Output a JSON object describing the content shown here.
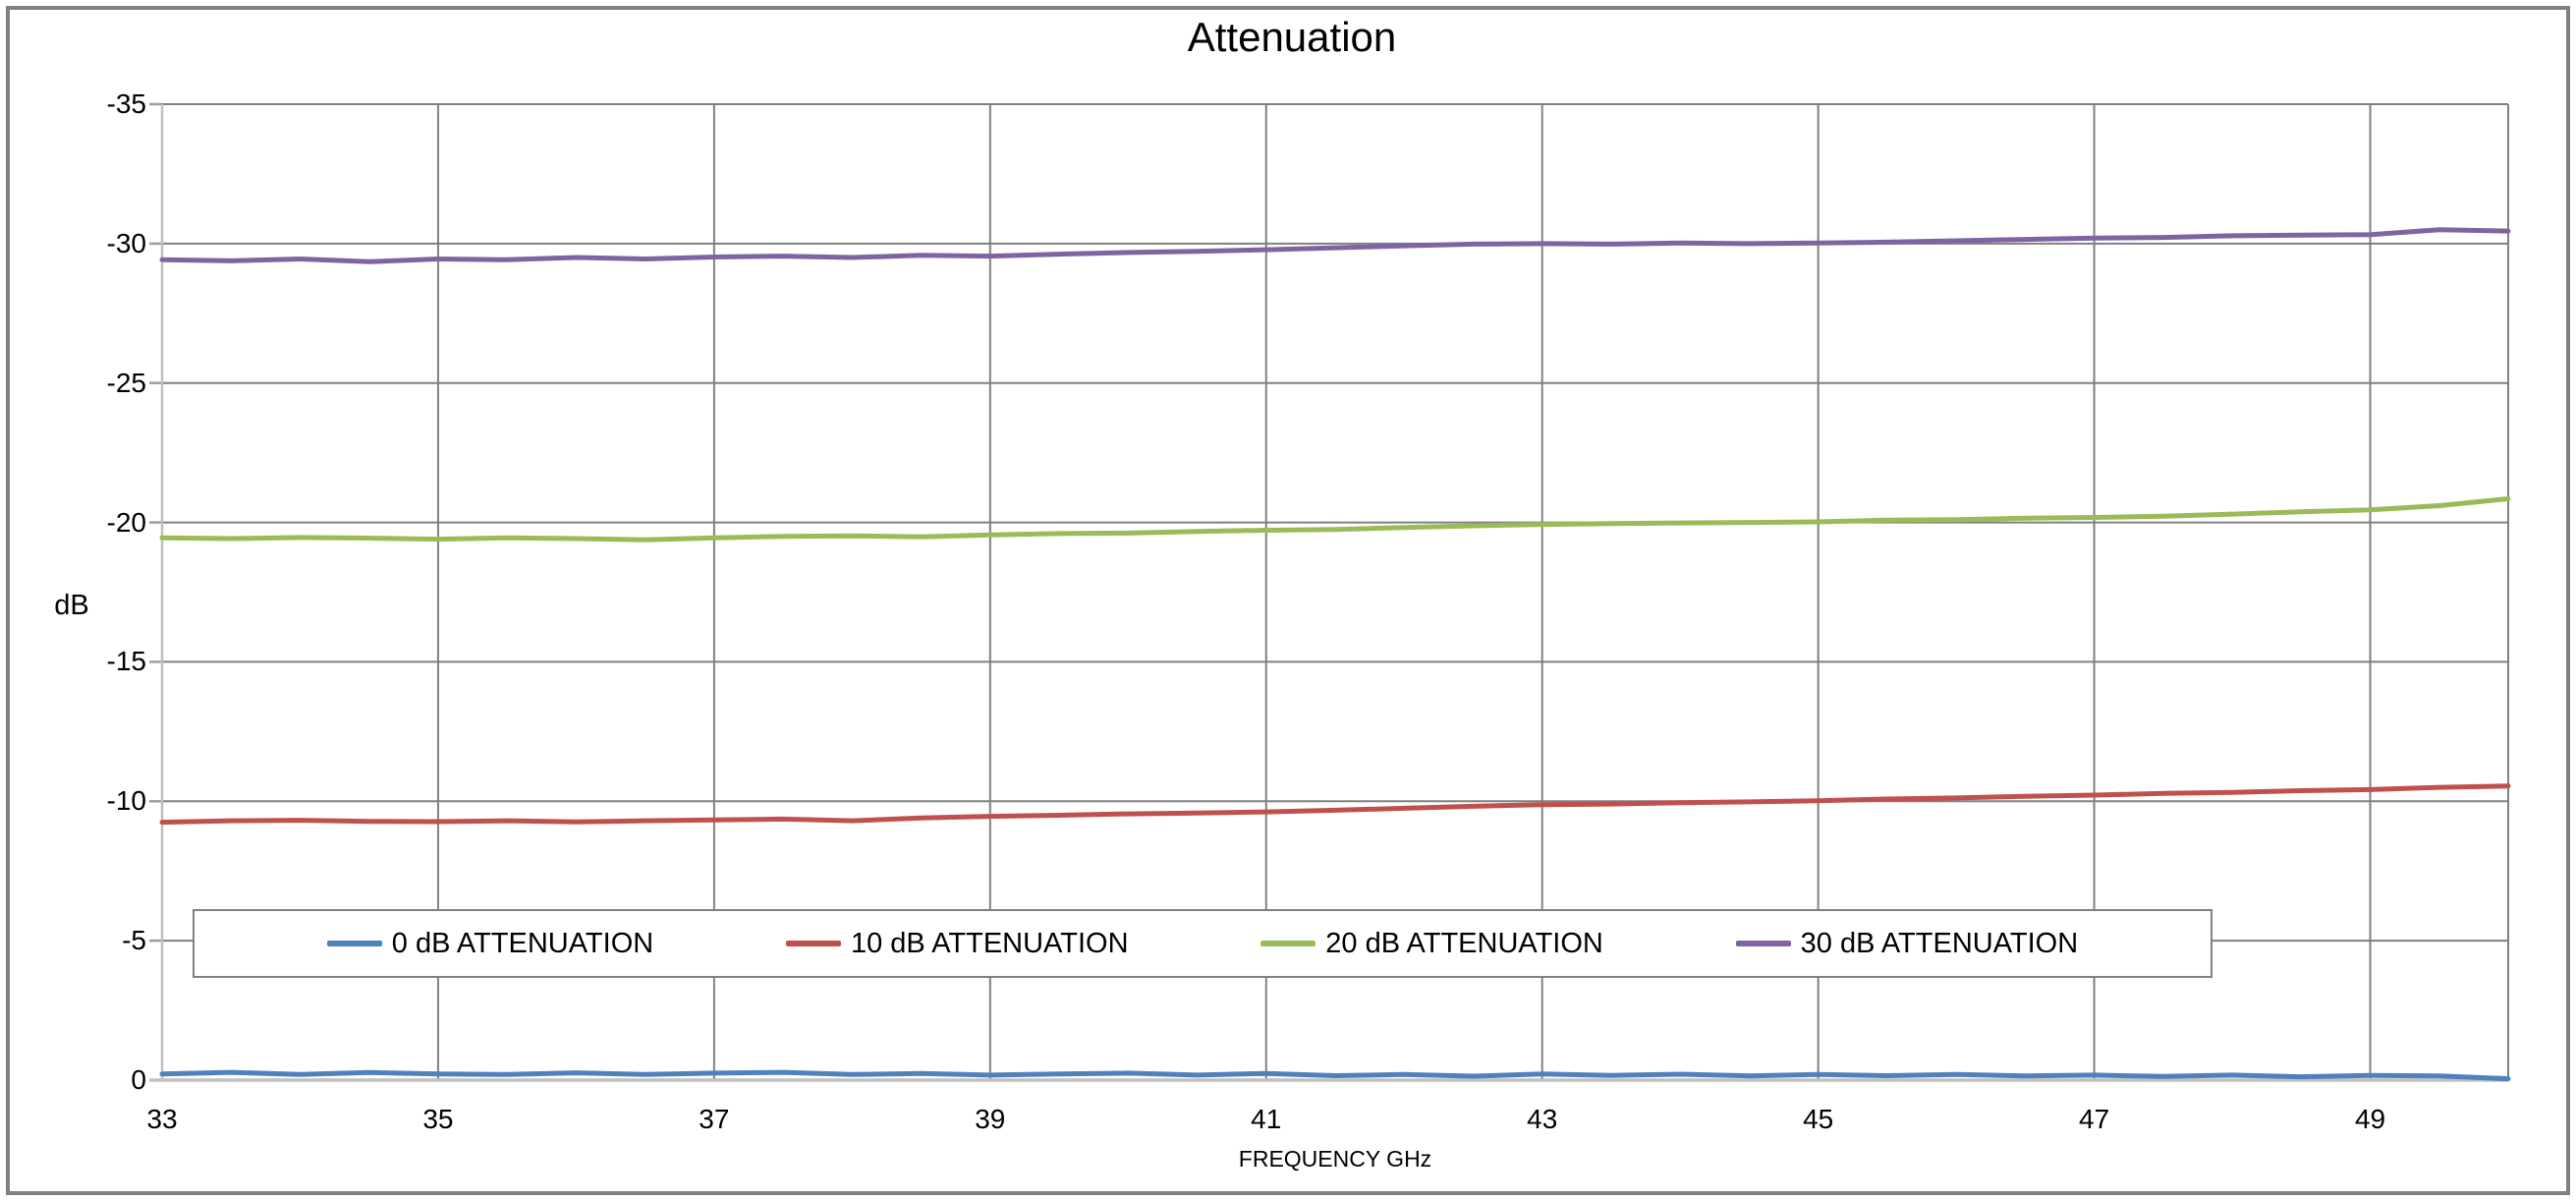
{
  "chart_data": {
    "type": "line",
    "title": "Attenuation",
    "xlabel": "FREQUENCY GHz",
    "ylabel": "dB",
    "xlim": [
      33,
      50
    ],
    "ylim_top_to_bottom": [
      -35,
      0
    ],
    "grid": true,
    "legend_position": "bottom-inside-horizontal",
    "y_tick_values": [
      -35,
      -30,
      -25,
      -20,
      -15,
      -10,
      -5,
      0
    ],
    "y_tick_labels": [
      "-35",
      "-30",
      "-25",
      "-20",
      "-15",
      "-10",
      "-5",
      "0"
    ],
    "x_tick_values": [
      33,
      35,
      37,
      39,
      41,
      43,
      45,
      47,
      49
    ],
    "x_tick_labels": [
      "33",
      "35",
      "37",
      "39",
      "41",
      "43",
      "45",
      "47",
      "49"
    ],
    "x_gridline_values": [
      33,
      35,
      37,
      39,
      41,
      43,
      45,
      47,
      49,
      50
    ],
    "x": [
      33,
      33.5,
      34,
      34.5,
      35,
      35.5,
      36,
      36.5,
      37,
      37.5,
      38,
      38.5,
      39,
      39.5,
      40,
      40.5,
      41,
      41.5,
      42,
      42.5,
      43,
      43.5,
      44,
      44.5,
      45,
      45.5,
      46,
      46.5,
      47,
      47.5,
      48,
      48.5,
      49,
      49.5,
      50
    ],
    "series": [
      {
        "label": "0 dB ATTENUATION",
        "color": "#4F81BD",
        "values": [
          -0.22,
          -0.28,
          -0.2,
          -0.27,
          -0.22,
          -0.2,
          -0.26,
          -0.2,
          -0.25,
          -0.28,
          -0.2,
          -0.24,
          -0.18,
          -0.22,
          -0.25,
          -0.18,
          -0.24,
          -0.16,
          -0.2,
          -0.14,
          -0.22,
          -0.17,
          -0.21,
          -0.15,
          -0.2,
          -0.16,
          -0.2,
          -0.15,
          -0.18,
          -0.13,
          -0.18,
          -0.12,
          -0.17,
          -0.15,
          -0.05
        ]
      },
      {
        "label": "10 dB ATTENUATION",
        "color": "#C0504D",
        "values": [
          -9.25,
          -9.3,
          -9.32,
          -9.28,
          -9.27,
          -9.3,
          -9.26,
          -9.3,
          -9.33,
          -9.36,
          -9.3,
          -9.4,
          -9.46,
          -9.5,
          -9.55,
          -9.58,
          -9.62,
          -9.68,
          -9.75,
          -9.82,
          -9.88,
          -9.9,
          -9.95,
          -9.98,
          -10.02,
          -10.08,
          -10.12,
          -10.18,
          -10.22,
          -10.28,
          -10.32,
          -10.38,
          -10.42,
          -10.5,
          -10.55
        ]
      },
      {
        "label": "20 dB ATTENUATION",
        "color": "#9BBB59",
        "values": [
          -19.45,
          -19.42,
          -19.46,
          -19.44,
          -19.4,
          -19.45,
          -19.42,
          -19.38,
          -19.45,
          -19.5,
          -19.52,
          -19.48,
          -19.55,
          -19.6,
          -19.62,
          -19.68,
          -19.72,
          -19.75,
          -19.82,
          -19.88,
          -19.93,
          -19.96,
          -19.98,
          -20.0,
          -20.02,
          -20.08,
          -20.1,
          -20.15,
          -20.18,
          -20.22,
          -20.3,
          -20.38,
          -20.45,
          -20.6,
          -20.85
        ]
      },
      {
        "label": "30 dB ATTENUATION",
        "color": "#8064A2",
        "values": [
          -29.42,
          -29.38,
          -29.45,
          -29.35,
          -29.45,
          -29.42,
          -29.5,
          -29.45,
          -29.52,
          -29.55,
          -29.5,
          -29.58,
          -29.55,
          -29.62,
          -29.68,
          -29.72,
          -29.78,
          -29.85,
          -29.92,
          -29.98,
          -30.0,
          -29.98,
          -30.02,
          -30.0,
          -30.02,
          -30.05,
          -30.1,
          -30.15,
          -30.2,
          -30.22,
          -30.28,
          -30.3,
          -30.32,
          -30.5,
          -30.45
        ]
      }
    ],
    "colors": {
      "gridline": "#808080",
      "axis_line": "#C0C0C0",
      "tick_mark": "#9E9E9E",
      "border": "#808080",
      "text": "#000000",
      "background": "#FFFFFF"
    }
  }
}
